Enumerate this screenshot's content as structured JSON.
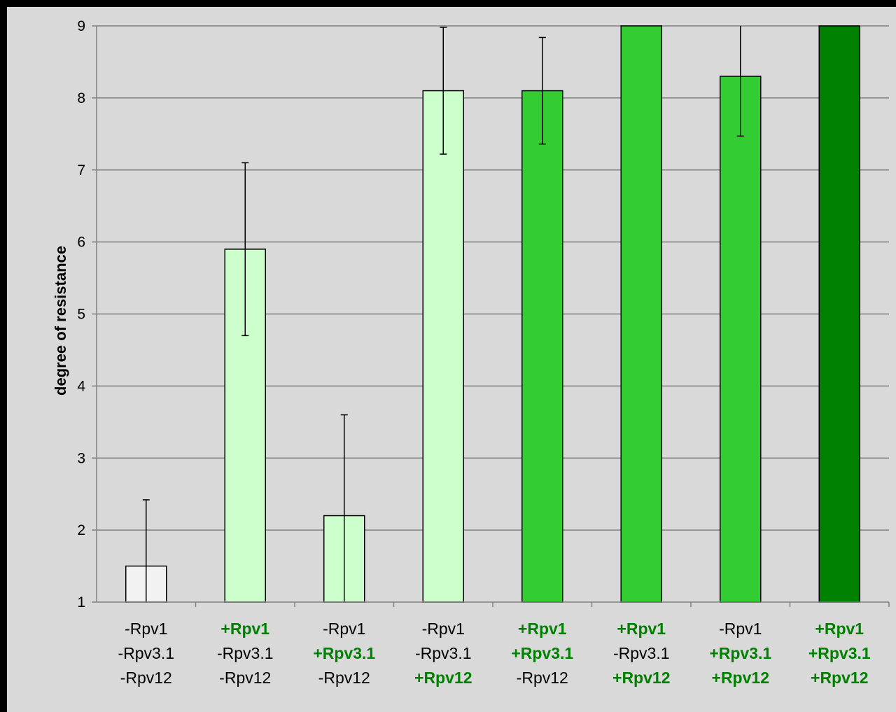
{
  "chart_data": {
    "type": "bar",
    "ylabel": "degree of resistance",
    "ylim": [
      1,
      9
    ],
    "yticks": [
      1,
      2,
      3,
      4,
      5,
      6,
      7,
      8,
      9
    ],
    "grid": true,
    "legend": "none",
    "categories": [
      {
        "lines": [
          {
            "text": "-Rpv1",
            "present": false
          },
          {
            "text": "-Rpv3.1",
            "present": false
          },
          {
            "text": "-Rpv12",
            "present": false
          }
        ]
      },
      {
        "lines": [
          {
            "text": "+Rpv1",
            "present": true
          },
          {
            "text": "-Rpv3.1",
            "present": false
          },
          {
            "text": "-Rpv12",
            "present": false
          }
        ]
      },
      {
        "lines": [
          {
            "text": "-Rpv1",
            "present": false
          },
          {
            "text": "+Rpv3.1",
            "present": true
          },
          {
            "text": "-Rpv12",
            "present": false
          }
        ]
      },
      {
        "lines": [
          {
            "text": "-Rpv1",
            "present": false
          },
          {
            "text": "-Rpv3.1",
            "present": false
          },
          {
            "text": "+Rpv12",
            "present": true
          }
        ]
      },
      {
        "lines": [
          {
            "text": "+Rpv1",
            "present": true
          },
          {
            "text": "+Rpv3.1",
            "present": true
          },
          {
            "text": "-Rpv12",
            "present": false
          }
        ]
      },
      {
        "lines": [
          {
            "text": "+Rpv1",
            "present": true
          },
          {
            "text": "-Rpv3.1",
            "present": false
          },
          {
            "text": "+Rpv12",
            "present": true
          }
        ]
      },
      {
        "lines": [
          {
            "text": "-Rpv1",
            "present": false
          },
          {
            "text": "+Rpv3.1",
            "present": true
          },
          {
            "text": "+Rpv12",
            "present": true
          }
        ]
      },
      {
        "lines": [
          {
            "text": "+Rpv1",
            "present": true
          },
          {
            "text": "+Rpv3.1",
            "present": true
          },
          {
            "text": "+Rpv12",
            "present": true
          }
        ]
      }
    ],
    "series": [
      {
        "values": [
          1.5,
          5.9,
          2.2,
          8.1,
          8.1,
          9.0,
          8.3,
          9.0
        ],
        "error": [
          0.92,
          1.2,
          1.4,
          0.88,
          0.74,
          0,
          0.83,
          0
        ],
        "colors": [
          "#f2f2f2",
          "#ccffcc",
          "#ccffcc",
          "#ccffcc",
          "#33cc33",
          "#33cc33",
          "#33cc33",
          "#008000"
        ]
      }
    ]
  },
  "colors": {
    "plot_background": "#d9d9d9",
    "gridline": "#808080",
    "present_label": "#008000",
    "absent_label": "#000000"
  }
}
